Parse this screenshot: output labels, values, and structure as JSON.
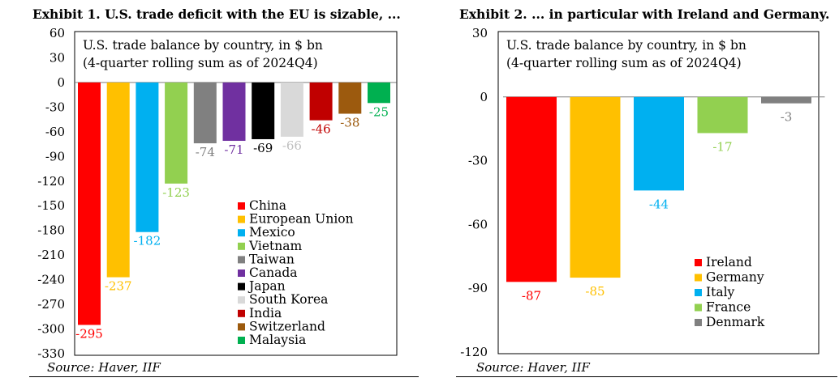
{
  "exhibits": [
    {
      "title": "Exhibit 1. U.S. trade deficit with the EU is sizable, ...",
      "source": "Source: Haver, IIF"
    },
    {
      "title": "Exhibit 2. ... in particular with Ireland and Germany.",
      "source": "Source: Haver, IIF"
    }
  ],
  "chart_data": [
    {
      "type": "bar",
      "note_lines": [
        "U.S. trade balance by country, in $ bn",
        "(4-quarter rolling sum as of 2024Q4)"
      ],
      "categories": [
        "China",
        "European Union",
        "Mexico",
        "Vietnam",
        "Taiwan",
        "Canada",
        "Japan",
        "South Korea",
        "India",
        "Switzerland",
        "Malaysia"
      ],
      "values": [
        -295,
        -237,
        -182,
        -123,
        -74,
        -71,
        -69,
        -66,
        -46,
        -38,
        -25
      ],
      "value_labels": [
        "-295",
        "-237",
        "-182",
        "-123",
        "-74",
        "-71",
        "-69",
        "-66",
        "-46",
        "-38",
        "-25"
      ],
      "colors": [
        "#ff0000",
        "#ffc000",
        "#00b0f0",
        "#92d050",
        "#808080",
        "#7030a0",
        "#000000",
        "#d9d9d9",
        "#c00000",
        "#9c5a0e",
        "#00b050"
      ],
      "label_colors": [
        "#ff0000",
        "#ffc000",
        "#00b0f0",
        "#92d050",
        "#808080",
        "#7030a0",
        "#000000",
        "#bfbfbf",
        "#c00000",
        "#9c5a0e",
        "#00b050"
      ],
      "ylim": [
        -330,
        60
      ],
      "yticks": [
        60,
        30,
        0,
        -30,
        -60,
        -90,
        -120,
        -150,
        -180,
        -210,
        -240,
        -270,
        -300,
        -330
      ],
      "ytick_labels": [
        "60",
        "30",
        "0",
        "-30",
        "-60",
        "-90",
        "-120",
        "-150",
        "-180",
        "-210",
        "-240",
        "-270",
        "-300",
        "-330"
      ],
      "legend": "bottom-right",
      "grid": false
    },
    {
      "type": "bar",
      "note_lines": [
        "U.S. trade balance by country, in $ bn",
        "(4-quarter rolling sum as of 2024Q4)"
      ],
      "categories": [
        "Ireland",
        "Germany",
        "Italy",
        "France",
        "Denmark"
      ],
      "values": [
        -87,
        -85,
        -44,
        -17,
        -3
      ],
      "value_labels": [
        "-87",
        "-85",
        "-44",
        "-17",
        "-3"
      ],
      "colors": [
        "#ff0000",
        "#ffc000",
        "#00b0f0",
        "#92d050",
        "#808080"
      ],
      "label_colors": [
        "#ff0000",
        "#ffc000",
        "#00b0f0",
        "#92d050",
        "#808080"
      ],
      "ylim": [
        -120,
        30
      ],
      "yticks": [
        30,
        0,
        -30,
        -60,
        -90,
        -120
      ],
      "ytick_labels": [
        "30",
        "0",
        "-30",
        "-60",
        "-90",
        "-120"
      ],
      "legend": "bottom-right",
      "grid": false
    }
  ]
}
